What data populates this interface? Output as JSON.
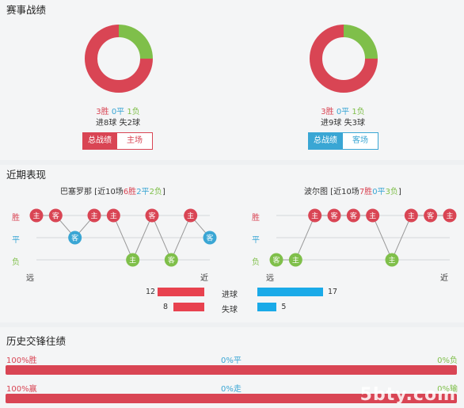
{
  "section1": {
    "title": "赛事战绩",
    "left": {
      "win": "3胜",
      "draw": "0平",
      "loss": "1负",
      "goals": "进8球 失2球",
      "btn_active": "总战绩",
      "btn_other": "主场",
      "donut": {
        "win": 3,
        "draw": 0,
        "loss": 1
      }
    },
    "right": {
      "win": "3胜",
      "draw": "0平",
      "loss": "1负",
      "goals": "进9球 失3球",
      "btn_active": "总战绩",
      "btn_other": "客场",
      "donut": {
        "win": 3,
        "draw": 0,
        "loss": 1
      }
    }
  },
  "section2": {
    "title": "近期表现",
    "left": {
      "name_prefix": "巴塞罗那 [近10场",
      "wins": "6胜",
      "draws": "2平",
      "losses": "2负",
      "suffix": "]",
      "row_win": "胜",
      "row_draw": "平",
      "row_loss": "负",
      "far": "远",
      "near": "近",
      "matches": [
        {
          "r": "W",
          "v": "主"
        },
        {
          "r": "W",
          "v": "客"
        },
        {
          "r": "D",
          "v": "客"
        },
        {
          "r": "W",
          "v": "主"
        },
        {
          "r": "W",
          "v": "主"
        },
        {
          "r": "L",
          "v": "主"
        },
        {
          "r": "W",
          "v": "客"
        },
        {
          "r": "L",
          "v": "客"
        },
        {
          "r": "W",
          "v": "主"
        },
        {
          "r": "D",
          "v": "客"
        }
      ]
    },
    "right": {
      "name_prefix": "波尔图 [近10场",
      "wins": "7胜",
      "draws": "0平",
      "losses": "3负",
      "suffix": "]",
      "row_win": "胜",
      "row_draw": "平",
      "row_loss": "负",
      "far": "远",
      "near": "近",
      "matches": [
        {
          "r": "L",
          "v": "客"
        },
        {
          "r": "L",
          "v": "主"
        },
        {
          "r": "W",
          "v": "主"
        },
        {
          "r": "W",
          "v": "客"
        },
        {
          "r": "W",
          "v": "客"
        },
        {
          "r": "W",
          "v": "主"
        },
        {
          "r": "L",
          "v": "主"
        },
        {
          "r": "W",
          "v": "主"
        },
        {
          "r": "W",
          "v": "客"
        },
        {
          "r": "W",
          "v": "主"
        }
      ]
    },
    "goals": {
      "scored_label": "进球",
      "conceded_label": "失球",
      "left_scored": 12,
      "left_conceded": 8,
      "right_scored": 17,
      "right_conceded": 5
    }
  },
  "section3": {
    "title": "历史交锋往绩",
    "row1": {
      "left": "100%胜",
      "mid": "0%平",
      "right": "0%负"
    },
    "row2": {
      "left": "100%赢",
      "mid": "0%走",
      "right": "0%输"
    }
  },
  "watermark": "5bty.com",
  "colors": {
    "win": "#d94554",
    "draw": "#3aa6d4",
    "loss": "#7fbf4a",
    "scored": "#e8424f",
    "blue_bar": "#1aaae8"
  }
}
